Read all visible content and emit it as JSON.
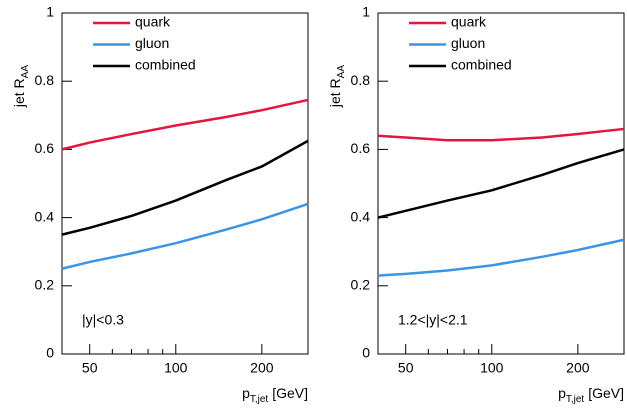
{
  "chart_data": [
    {
      "type": "line",
      "xlog": true,
      "legend": "upper left",
      "ylabel": {
        "main": "jet R",
        "sub": "AA"
      },
      "xlabel": {
        "main": "p",
        "sub": "T,jet",
        "unit": "[GeV]"
      },
      "annotation": "|y|<0.3",
      "x": [
        40,
        50,
        70,
        100,
        150,
        200,
        290
      ],
      "series": [
        {
          "name": "quark",
          "color": "#e3163f",
          "values": [
            0.6,
            0.62,
            0.645,
            0.67,
            0.695,
            0.715,
            0.745
          ]
        },
        {
          "name": "gluon",
          "color": "#3b95e4",
          "values": [
            0.25,
            0.27,
            0.295,
            0.325,
            0.365,
            0.395,
            0.44
          ]
        },
        {
          "name": "combined",
          "color": "#000000",
          "values": [
            0.35,
            0.37,
            0.405,
            0.45,
            0.51,
            0.55,
            0.625
          ]
        }
      ],
      "xlim": [
        40,
        290
      ],
      "ylim": [
        0,
        1
      ],
      "xticks": [
        50,
        100,
        200
      ],
      "xminorticks": [
        40,
        60,
        70,
        80,
        90
      ],
      "yticks": [
        0,
        0.2,
        0.4,
        0.6,
        0.8,
        1
      ]
    },
    {
      "type": "line",
      "xlog": true,
      "legend": "upper left",
      "ylabel": {
        "main": "jet R",
        "sub": "AA"
      },
      "xlabel": {
        "main": "p",
        "sub": "T,jet",
        "unit": "[GeV]"
      },
      "annotation": "1.2<|y|<2.1",
      "x": [
        40,
        50,
        70,
        100,
        150,
        200,
        290
      ],
      "series": [
        {
          "name": "quark",
          "color": "#e3163f",
          "values": [
            0.64,
            0.635,
            0.627,
            0.627,
            0.635,
            0.645,
            0.66
          ]
        },
        {
          "name": "gluon",
          "color": "#3b95e4",
          "values": [
            0.23,
            0.235,
            0.245,
            0.26,
            0.285,
            0.305,
            0.335
          ]
        },
        {
          "name": "combined",
          "color": "#000000",
          "values": [
            0.4,
            0.42,
            0.45,
            0.48,
            0.525,
            0.56,
            0.6
          ]
        }
      ],
      "xlim": [
        40,
        290
      ],
      "ylim": [
        0,
        1
      ],
      "xticks": [
        50,
        100,
        200
      ],
      "xminorticks": [
        40,
        60,
        70,
        80,
        90
      ],
      "yticks": [
        0,
        0.2,
        0.4,
        0.6,
        0.8,
        1
      ]
    }
  ]
}
